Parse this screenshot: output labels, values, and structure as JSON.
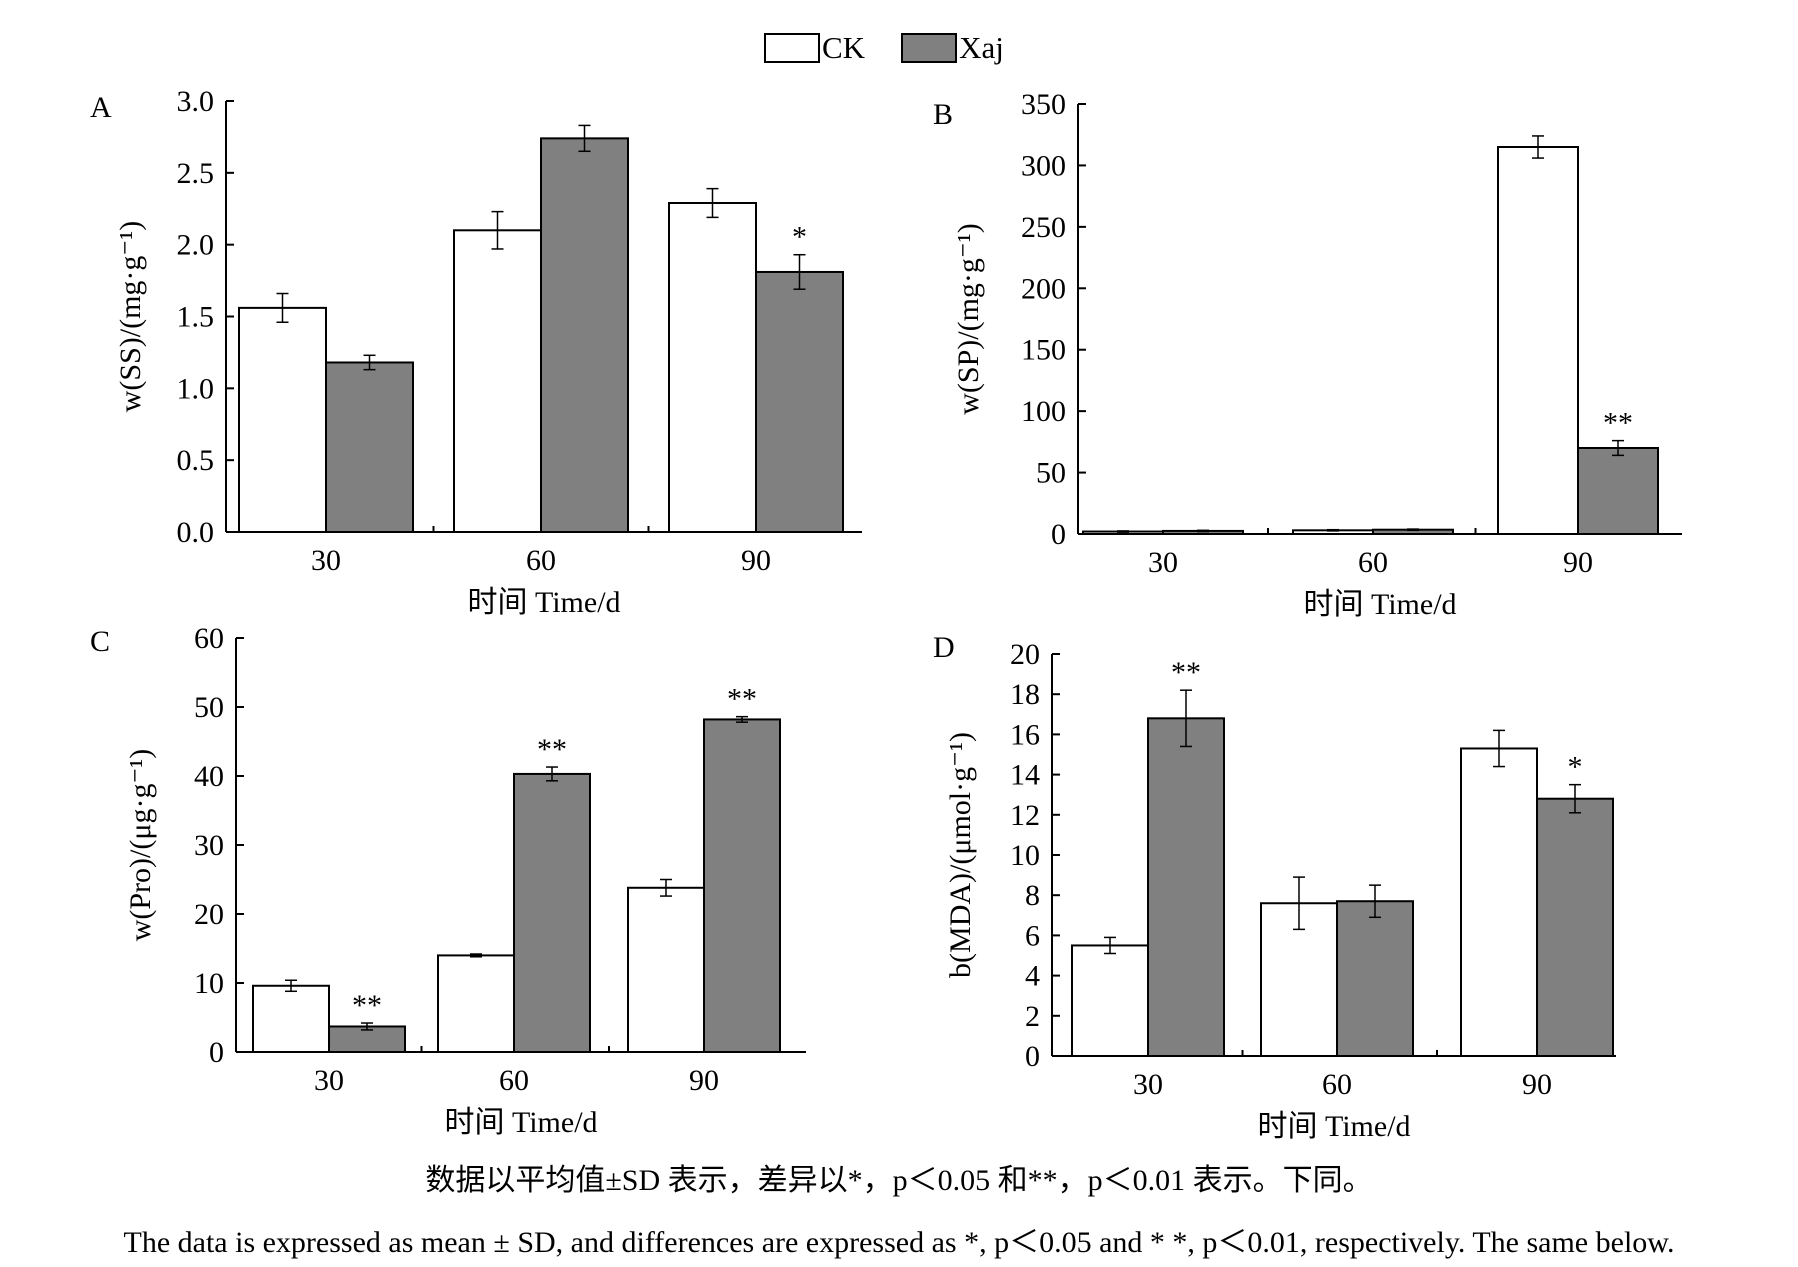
{
  "legend": {
    "items": [
      {
        "label": "CK",
        "color": "#ffffff"
      },
      {
        "label": "Xaj",
        "color": "#808080"
      }
    ]
  },
  "chart_data": [
    {
      "panel": "A",
      "type": "bar",
      "categories": [
        "30",
        "60",
        "90"
      ],
      "series": [
        {
          "name": "CK",
          "values": [
            1.56,
            2.1,
            2.29
          ],
          "errors": [
            0.1,
            0.13,
            0.1
          ],
          "marks": [
            "",
            "",
            ""
          ]
        },
        {
          "name": "Xaj",
          "values": [
            1.18,
            2.74,
            1.81
          ],
          "errors": [
            0.05,
            0.09,
            0.12
          ],
          "marks": [
            "",
            "",
            "*"
          ]
        }
      ],
      "ylim": [
        0,
        3.0
      ],
      "yticks": [
        "0.0",
        "0.5",
        "1.0",
        "1.5",
        "2.0",
        "2.5",
        "3.0"
      ],
      "ylabel": "w(SS)/(mg·g⁻¹)",
      "xlabel": "时间 Time/d"
    },
    {
      "panel": "B",
      "type": "bar",
      "categories": [
        "30",
        "60",
        "90"
      ],
      "series": [
        {
          "name": "CK",
          "values": [
            2,
            3,
            315
          ],
          "errors": [
            0.5,
            0.5,
            9
          ],
          "marks": [
            "",
            "",
            ""
          ]
        },
        {
          "name": "Xaj",
          "values": [
            2.5,
            3.5,
            70
          ],
          "errors": [
            0.5,
            0.5,
            6
          ],
          "marks": [
            "",
            "",
            "**"
          ]
        }
      ],
      "ylim": [
        0,
        350
      ],
      "yticks": [
        "0",
        "50",
        "100",
        "150",
        "200",
        "250",
        "300",
        "350"
      ],
      "ylabel": "w(SP)/(mg·g⁻¹)",
      "xlabel": "时间 Time/d"
    },
    {
      "panel": "C",
      "type": "bar",
      "categories": [
        "30",
        "60",
        "90"
      ],
      "series": [
        {
          "name": "CK",
          "values": [
            9.6,
            14.0,
            23.8
          ],
          "errors": [
            0.8,
            0.2,
            1.2
          ],
          "marks": [
            "",
            "",
            ""
          ]
        },
        {
          "name": "Xaj",
          "values": [
            3.7,
            40.3,
            48.2
          ],
          "errors": [
            0.5,
            1.0,
            0.4
          ],
          "marks": [
            "**",
            "**",
            "**"
          ]
        }
      ],
      "ylim": [
        0,
        60
      ],
      "yticks": [
        "0",
        "10",
        "20",
        "30",
        "40",
        "50",
        "60"
      ],
      "ylabel": "w(Pro)/(μg·g⁻¹)",
      "xlabel": "时间 Time/d"
    },
    {
      "panel": "D",
      "type": "bar",
      "categories": [
        "30",
        "60",
        "90"
      ],
      "series": [
        {
          "name": "CK",
          "values": [
            5.5,
            7.6,
            15.3
          ],
          "errors": [
            0.4,
            1.3,
            0.9
          ],
          "marks": [
            "",
            "",
            ""
          ]
        },
        {
          "name": "Xaj",
          "values": [
            16.8,
            7.7,
            12.8
          ],
          "errors": [
            1.4,
            0.8,
            0.7
          ],
          "marks": [
            "**",
            "",
            "*"
          ]
        }
      ],
      "ylim": [
        0,
        20
      ],
      "yticks": [
        "0",
        "2",
        "4",
        "6",
        "8",
        "10",
        "12",
        "14",
        "16",
        "18",
        "20"
      ],
      "ylabel": "b(MDA)/(μmol·g⁻¹)",
      "xlabel": "时间 Time/d"
    }
  ],
  "caption": {
    "zh": "数据以平均值±SD 表示，差异以*，p＜0.05 和**，p＜0.01 表示。下同。",
    "en": "The data is expressed as mean ± SD, and differences are expressed as *, p＜0.05 and * *, p＜0.01, respectively. The same below."
  }
}
